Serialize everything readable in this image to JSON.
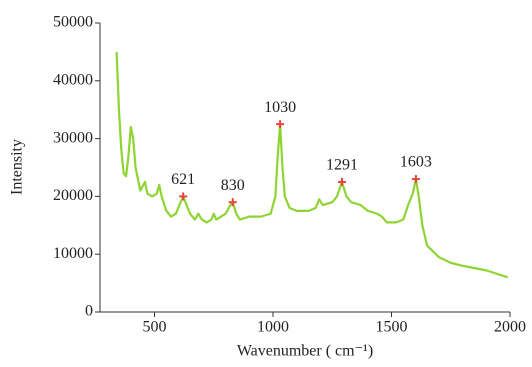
{
  "chart_data": {
    "type": "line",
    "x_label": "Wavenumber ( cm⁻¹)",
    "y_label": "Intensity",
    "xlim": [
      270,
      2000
    ],
    "xticks": [
      500,
      1000,
      1500,
      2000
    ],
    "ylim": [
      0,
      50000
    ],
    "yticks": [
      0,
      10000,
      20000,
      30000,
      40000,
      50000
    ],
    "grid": false,
    "x": [
      340,
      350,
      360,
      370,
      380,
      390,
      400,
      410,
      420,
      440,
      460,
      470,
      490,
      510,
      520,
      530,
      550,
      570,
      590,
      610,
      621,
      635,
      650,
      670,
      685,
      700,
      720,
      740,
      750,
      760,
      780,
      800,
      820,
      830,
      845,
      860,
      900,
      950,
      990,
      1010,
      1020,
      1030,
      1040,
      1050,
      1070,
      1100,
      1150,
      1180,
      1195,
      1210,
      1250,
      1270,
      1291,
      1310,
      1330,
      1370,
      1400,
      1440,
      1460,
      1480,
      1520,
      1550,
      1570,
      1590,
      1603,
      1615,
      1630,
      1650,
      1700,
      1750,
      1800,
      1900,
      1990
    ],
    "series": [
      {
        "color": "#8ed433",
        "values": [
          45000,
          35000,
          28000,
          24000,
          23500,
          27000,
          32000,
          30000,
          25000,
          21000,
          22500,
          20500,
          20000,
          20500,
          22000,
          20000,
          17500,
          16500,
          17000,
          19000,
          20000,
          18500,
          17000,
          16000,
          17000,
          16000,
          15500,
          16000,
          17000,
          16000,
          16500,
          17000,
          18500,
          19000,
          17000,
          16000,
          16500,
          16500,
          17000,
          20000,
          27000,
          32500,
          25000,
          20000,
          18000,
          17500,
          17500,
          18000,
          19500,
          18500,
          19000,
          20000,
          22500,
          20000,
          19000,
          18500,
          17500,
          17000,
          16500,
          15500,
          15500,
          16000,
          18500,
          20500,
          23000,
          20000,
          15000,
          11500,
          9500,
          8500,
          8000,
          7200,
          6000
        ]
      }
    ],
    "peaks": {
      "color": "#e8443a",
      "x": [
        621,
        830,
        1030,
        1291,
        1603
      ],
      "values": [
        20000,
        19000,
        32500,
        22500,
        23000
      ]
    }
  }
}
